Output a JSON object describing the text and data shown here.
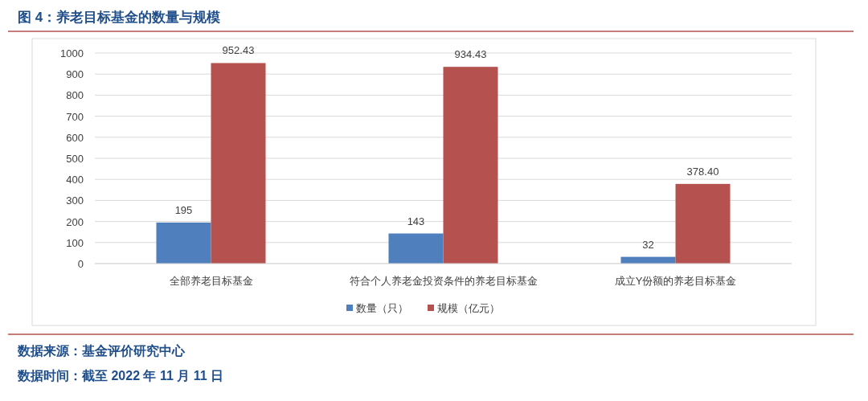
{
  "chart_data": {
    "type": "bar",
    "title": "图 4：养老目标基金的数量与规模",
    "categories": [
      "全部养老目标基金",
      "符合个人养老金投资条件的养老目标基金",
      "成立Y份额的养老目标基金"
    ],
    "series": [
      {
        "name": "数量（只）",
        "color": "#4f7fbd",
        "values": [
          195,
          143,
          32
        ],
        "value_labels": [
          "195",
          "143",
          "32"
        ]
      },
      {
        "name": "规模（亿元）",
        "color": "#b5524f",
        "values": [
          952.43,
          934.43,
          378.4
        ],
        "value_labels": [
          "952.43",
          "934.43",
          "378.40"
        ]
      }
    ],
    "ylim": [
      0,
      1000
    ],
    "yticks": [
      0,
      100,
      200,
      300,
      400,
      500,
      600,
      700,
      800,
      900,
      1000
    ],
    "grid": "y",
    "legend": "bottom",
    "annotations": [
      "数据来源：基金评价研究中心",
      "数据时间：截至 2022 年 11 月 11 日"
    ]
  }
}
